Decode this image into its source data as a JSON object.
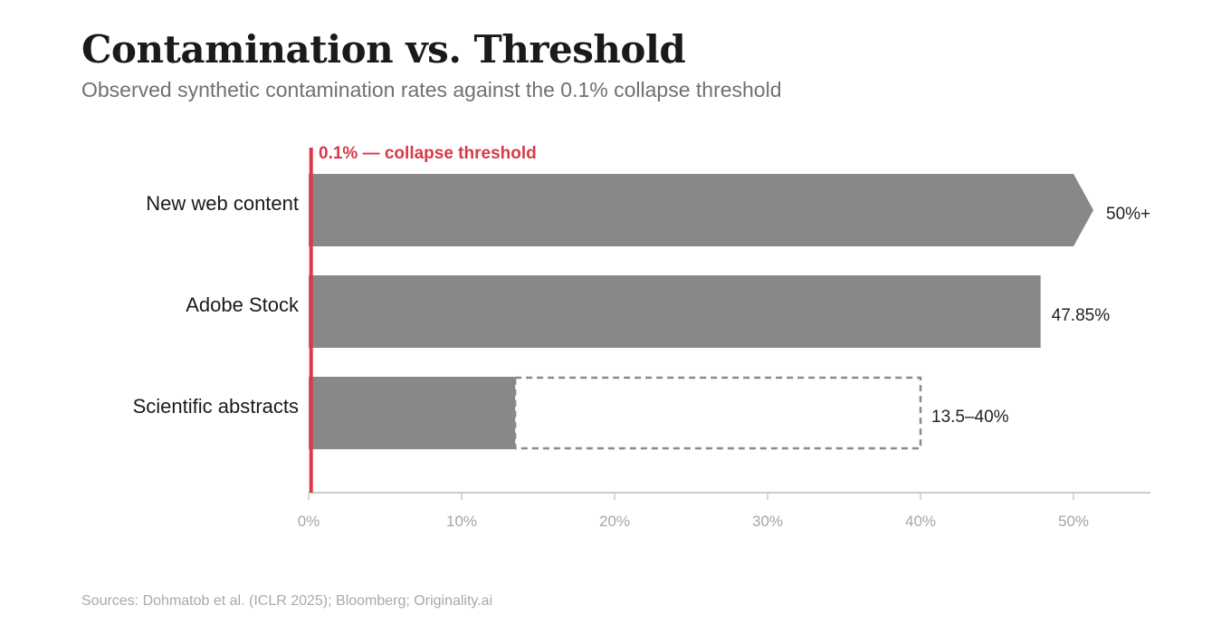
{
  "chart_data": {
    "type": "bar",
    "orientation": "horizontal",
    "title": "Contamination vs. Threshold",
    "subtitle": "Observed synthetic contamination rates against the 0.1% collapse threshold",
    "categories": [
      "New web content",
      "Adobe Stock",
      "Scientific abstracts"
    ],
    "bars": [
      {
        "category": "New web content",
        "value": 50,
        "value_label": "50%+",
        "open_ended": true
      },
      {
        "category": "Adobe Stock",
        "value": 47.85,
        "value_label": "47.85%",
        "open_ended": false
      },
      {
        "category": "Scientific abstracts",
        "value": 13.5,
        "range_high": 40,
        "value_label": "13.5–40%",
        "open_ended": false
      }
    ],
    "threshold": {
      "value": 0.1,
      "label": "0.1% — collapse threshold",
      "color": "#d93a49"
    },
    "xaxis": {
      "range": [
        0,
        55
      ],
      "ticks": [
        0,
        10,
        20,
        30,
        40,
        50
      ],
      "tick_labels": [
        "0%",
        "10%",
        "20%",
        "30%",
        "40%",
        "50%"
      ]
    },
    "colors": {
      "bar": "#888888",
      "range_outline": "#8a8a8a",
      "axis": "#cccccc",
      "tick_label": "#a6a6a6"
    },
    "source": "Sources: Dohmatob et al. (ICLR 2025); Bloomberg; Originality.ai"
  }
}
